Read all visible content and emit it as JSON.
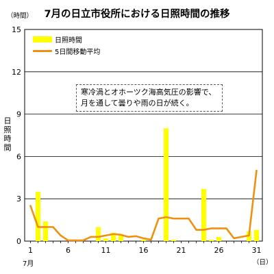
{
  "chart_data": {
    "type": "bar+line",
    "title": "7月の日立市役所における日照時間の推移",
    "y_unit_label": "（時間）",
    "y_axis_title": "日照時間",
    "x_unit_label": "（日）",
    "x_month_label": "7月",
    "ylim": [
      0,
      15
    ],
    "y_ticks": [
      0,
      3,
      6,
      9,
      12,
      15
    ],
    "x_ticks": [
      1,
      6,
      11,
      16,
      21,
      26,
      31
    ],
    "grid": "horizontal",
    "legend_position": "top-left",
    "days": [
      1,
      2,
      3,
      4,
      5,
      6,
      7,
      8,
      9,
      10,
      11,
      12,
      13,
      14,
      15,
      16,
      17,
      18,
      19,
      20,
      21,
      22,
      23,
      24,
      25,
      26,
      27,
      28,
      29,
      30,
      31
    ],
    "series": [
      {
        "name": "日照時間",
        "kind": "bar",
        "color": "#ffff00",
        "values": [
          0.0,
          3.5,
          1.4,
          0.0,
          0.0,
          0.0,
          0.1,
          0.0,
          0.0,
          1.0,
          0.2,
          0.6,
          0.5,
          0.0,
          0.0,
          0.1,
          0.0,
          0.0,
          8.0,
          0.1,
          0.0,
          0.0,
          0.0,
          3.7,
          0.1,
          0.3,
          0.0,
          0.0,
          0.0,
          0.7,
          0.8
        ]
      },
      {
        "name": "5日間移動平均",
        "kind": "line",
        "color": "#f0900e",
        "values": [
          2.5,
          1.0,
          1.0,
          1.0,
          0.4,
          0.05,
          0.05,
          0.05,
          0.3,
          0.3,
          0.4,
          0.5,
          0.45,
          0.3,
          0.35,
          0.2,
          0.1,
          1.6,
          1.7,
          1.6,
          1.6,
          1.6,
          0.8,
          0.8,
          0.9,
          0.9,
          0.9,
          0.2,
          0.3,
          0.4,
          5.0
        ]
      }
    ],
    "annotation": "寒冷渦とオホーツク海高気圧の影響で、月を通して曇りや雨の日が続く。"
  }
}
